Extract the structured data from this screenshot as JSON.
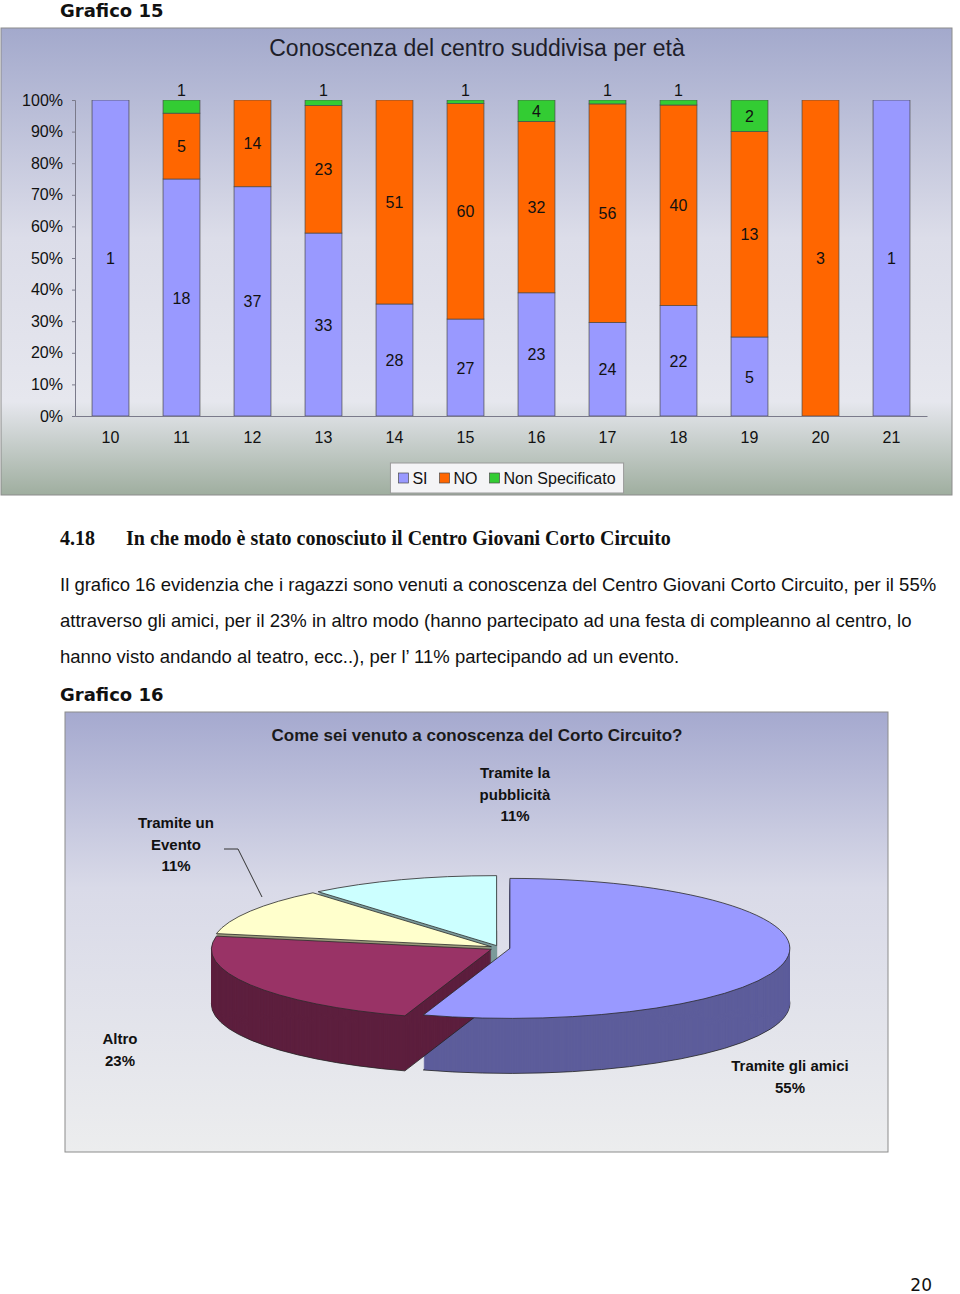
{
  "document": {
    "header": "Grafico 15",
    "section_number": "4.18",
    "section_title": "In che modo è stato conosciuto il Centro Giovani Corto Circuito",
    "paragraph": "Il grafico 16 evidenzia che i ragazzi sono venuti a conoscenza del Centro Giovani Corto Circuito, per il 55% attraverso gli amici, per il 23% in altro modo (hanno partecipato ad una festa di compleanno al centro, lo hanno visto andando al teatro, ecc..), per l’ 11% partecipando ad un evento.",
    "caption_2": "Grafico 16",
    "page_number": "20"
  },
  "chart_data": [
    {
      "type": "bar",
      "title": "Conoscenza del centro suddivisa per età",
      "categories": [
        "10",
        "11",
        "12",
        "13",
        "14",
        "15",
        "16",
        "17",
        "18",
        "19",
        "20",
        "21"
      ],
      "series": [
        {
          "name": "SI",
          "color": "#9999ff",
          "values": [
            1,
            18,
            37,
            33,
            28,
            27,
            23,
            24,
            22,
            5,
            0,
            1
          ]
        },
        {
          "name": "NO",
          "color": "#ff6600",
          "values": [
            0,
            5,
            14,
            23,
            51,
            60,
            32,
            56,
            40,
            13,
            3,
            0
          ]
        },
        {
          "name": "Non Specificato",
          "color": "#33cc33",
          "values": [
            0,
            1,
            0,
            1,
            0,
            1,
            4,
            1,
            1,
            2,
            0,
            0
          ]
        }
      ],
      "stacked": true,
      "ylim": [
        0,
        100
      ],
      "yticks": [
        {
          "value": 0,
          "label": "0%"
        },
        {
          "value": 10,
          "label": "10%"
        },
        {
          "value": 20,
          "label": "20%"
        },
        {
          "value": 30,
          "label": "30%"
        },
        {
          "value": 40,
          "label": "40%"
        },
        {
          "value": 50,
          "label": "50%"
        },
        {
          "value": 60,
          "label": "60%"
        },
        {
          "value": 70,
          "label": "70%"
        },
        {
          "value": 80,
          "label": "80%"
        },
        {
          "value": 90,
          "label": "90%"
        },
        {
          "value": 100,
          "label": "100%"
        }
      ],
      "grid": false,
      "data_labels": true,
      "legend": "bottom"
    },
    {
      "type": "pie",
      "title": "Come sei venuto a conoscenza del Corto Circuito?",
      "categories": [
        "Tramite gli amici",
        "Altro",
        "Tramite un Evento",
        "Tramite la pubblicità"
      ],
      "values": [
        55,
        23,
        11,
        11
      ],
      "value_labels": [
        "55%",
        "23%",
        "11%",
        "11%"
      ],
      "colors": [
        "#9999ff",
        "#993366",
        "#ffffcc",
        "#ccffff"
      ],
      "data_labels": true
    }
  ]
}
